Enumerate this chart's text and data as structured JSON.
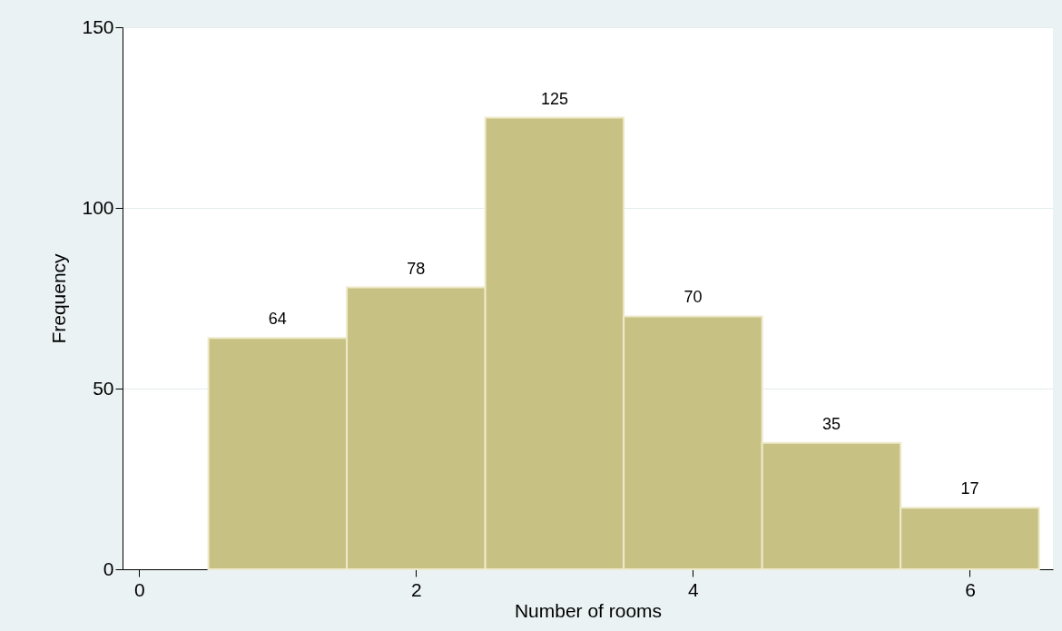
{
  "chart_data": {
    "type": "histogram",
    "xlabel": "Number of rooms",
    "ylabel": "Frequency",
    "bins": [
      0.5,
      1.5,
      2.5,
      3.5,
      4.5,
      5.5,
      6.5
    ],
    "values": [
      64,
      78,
      125,
      70,
      35,
      17
    ],
    "color": "#c8c184",
    "xlim": [
      -0.12,
      6.6
    ],
    "xticks": [
      0,
      2,
      4,
      6
    ],
    "ylim": [
      0,
      150
    ],
    "yticks": [
      0,
      50,
      100,
      150
    ],
    "grid": "y",
    "data_labels": true
  }
}
